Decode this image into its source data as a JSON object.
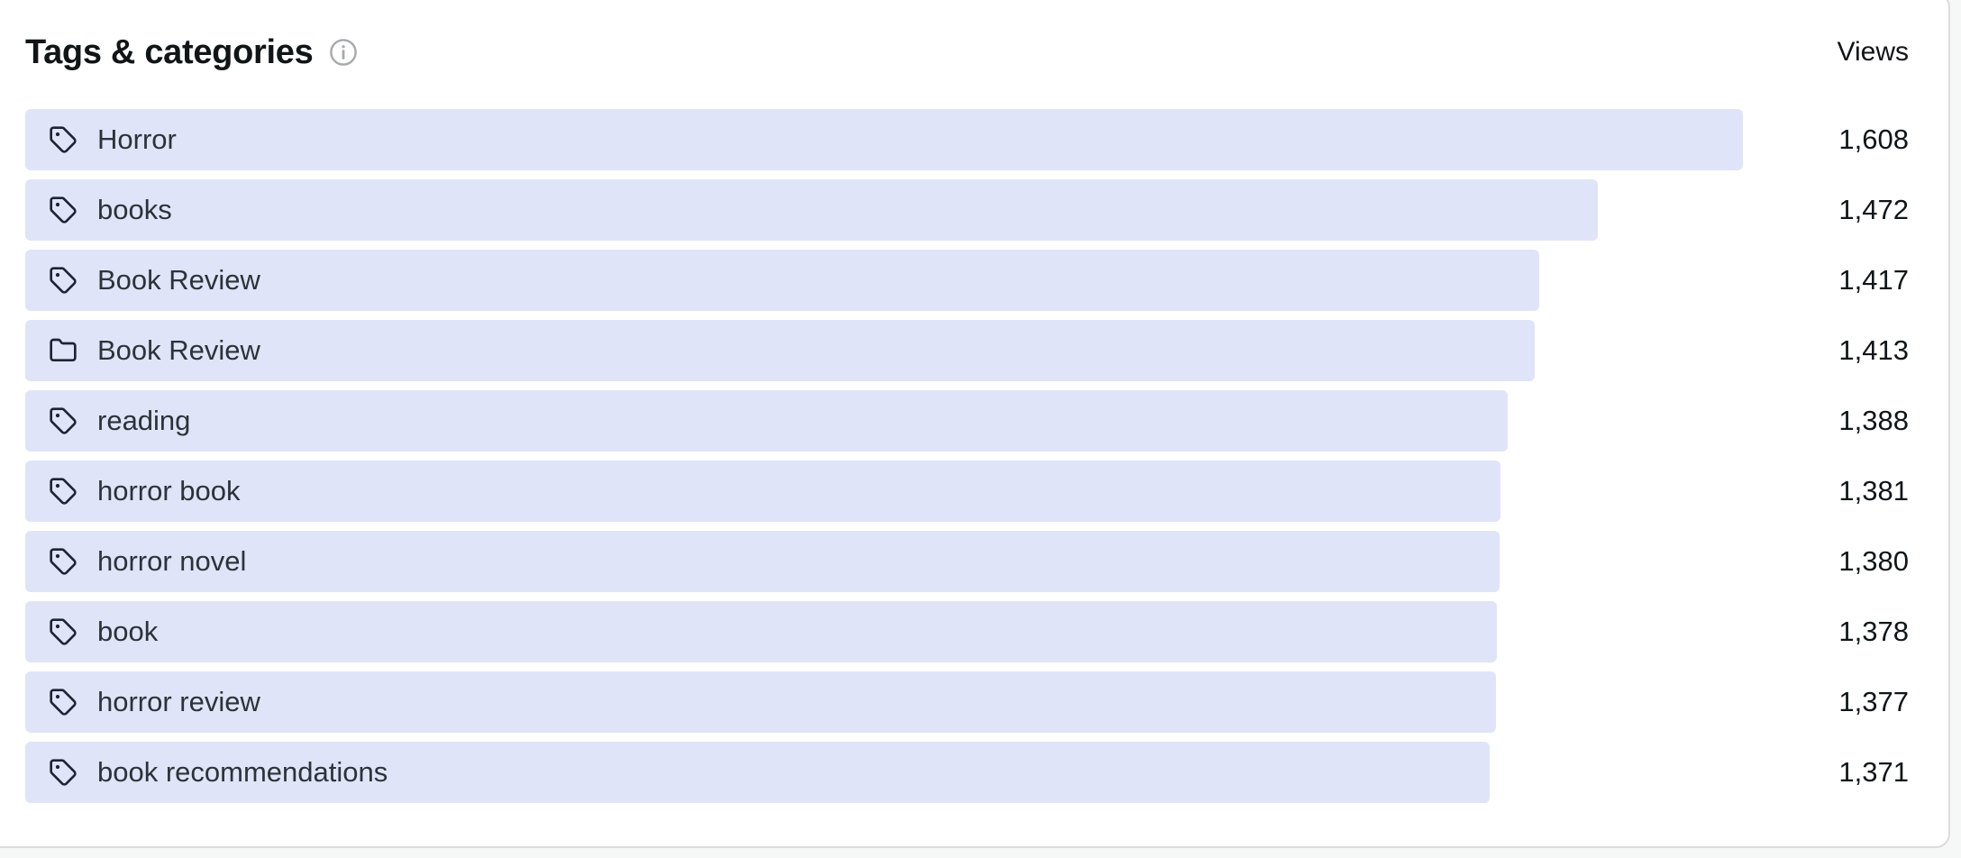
{
  "card": {
    "title": "Tags & categories",
    "views_header": "Views",
    "bar_color": "#e0e4f8",
    "icons": {
      "info": "info-circle-icon",
      "tag": "tag-icon",
      "category": "folder-icon"
    },
    "items": [
      {
        "label": "Horror",
        "type": "tag",
        "views": 1608,
        "views_display": "1,608"
      },
      {
        "label": "books",
        "type": "tag",
        "views": 1472,
        "views_display": "1,472"
      },
      {
        "label": "Book Review",
        "type": "tag",
        "views": 1417,
        "views_display": "1,417"
      },
      {
        "label": "Book Review",
        "type": "category",
        "views": 1413,
        "views_display": "1,413"
      },
      {
        "label": "reading",
        "type": "tag",
        "views": 1388,
        "views_display": "1,388"
      },
      {
        "label": "horror book",
        "type": "tag",
        "views": 1381,
        "views_display": "1,381"
      },
      {
        "label": "horror novel",
        "type": "tag",
        "views": 1380,
        "views_display": "1,380"
      },
      {
        "label": "book",
        "type": "tag",
        "views": 1378,
        "views_display": "1,378"
      },
      {
        "label": "horror review",
        "type": "tag",
        "views": 1377,
        "views_display": "1,377"
      },
      {
        "label": "book recommendations",
        "type": "tag",
        "views": 1371,
        "views_display": "1,371"
      }
    ]
  },
  "chart_data": {
    "type": "bar",
    "orientation": "horizontal",
    "title": "Tags & categories",
    "value_label": "Views",
    "categories": [
      "Horror",
      "books",
      "Book Review",
      "Book Review (category)",
      "reading",
      "horror book",
      "horror novel",
      "book",
      "horror review",
      "book recommendations"
    ],
    "values": [
      1608,
      1472,
      1417,
      1413,
      1388,
      1381,
      1380,
      1378,
      1377,
      1371
    ],
    "bar_color": "#e0e4f8",
    "grid": false,
    "legend": false
  }
}
